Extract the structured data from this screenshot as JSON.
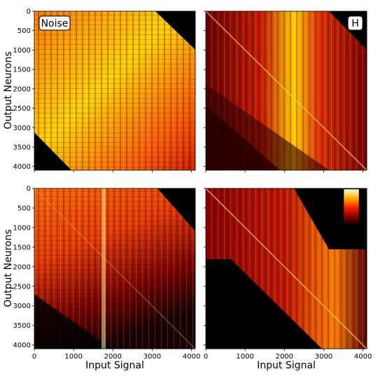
{
  "chart_data": [
    {
      "type": "heatmap",
      "panel": "top-left",
      "label": "Noise",
      "xlabel": "",
      "ylabel": "Output Neurons",
      "xlim": [
        0,
        4096
      ],
      "ylim": [
        0,
        4096
      ],
      "yticks": [
        0,
        500,
        1000,
        1500,
        2000,
        2500,
        3000,
        3500,
        4000
      ],
      "colormap": "hot",
      "description_pattern": "dense, bright band-limited matrix with black corners top-right and bottom-left"
    },
    {
      "type": "heatmap",
      "panel": "top-right",
      "label": "H",
      "xlabel": "",
      "ylabel": "",
      "xlim": [
        0,
        4096
      ],
      "ylim": [
        0,
        4096
      ],
      "colormap": "hot",
      "description_pattern": "banded matrix with vertical stripes, bright diagonal, dark lower triangle"
    },
    {
      "type": "heatmap",
      "panel": "bottom-left",
      "label": "",
      "xlabel": "Input Signal",
      "ylabel": "Output Neurons",
      "xlim": [
        0,
        4096
      ],
      "ylim": [
        0,
        4096
      ],
      "xticks": [
        0,
        1000,
        2000,
        3000,
        4000
      ],
      "yticks": [
        0,
        500,
        1000,
        1500,
        2000,
        2500,
        3000,
        3500,
        4000
      ],
      "colormap": "hot",
      "description_pattern": "upper-left dense, fading to dark bottom-left, diagonal visible"
    },
    {
      "type": "heatmap",
      "panel": "bottom-right",
      "label": "",
      "xlabel": "Input Signal",
      "ylabel": "",
      "xlim": [
        0,
        4096
      ],
      "ylim": [
        0,
        4096
      ],
      "xticks": [
        0,
        1000,
        2000,
        3000,
        4000
      ],
      "colormap": "hot",
      "colorbar": true,
      "description_pattern": "parallelogram band of vertical stripes with bright diagonal"
    }
  ],
  "colors": {
    "black": "#000000",
    "darkred": "#5a0000",
    "red": "#d40000",
    "orange": "#ff6a00",
    "yellow": "#ffe14a",
    "white": "#ffffe0"
  }
}
